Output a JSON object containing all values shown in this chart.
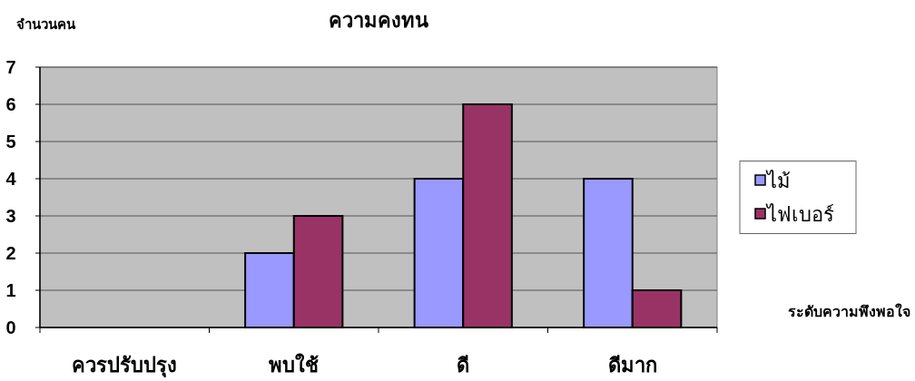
{
  "chart_data": {
    "type": "bar",
    "title": "ความคงทน",
    "xlabel": "ระดับความพึงพอใจ",
    "ylabel": "จำนวนคน",
    "categories": [
      "ควรปรับปรุง",
      "พบใช้",
      "ดี",
      "ดีมาก"
    ],
    "series": [
      {
        "name": "ไม้",
        "color": "#9999ff",
        "values": [
          0,
          2,
          4,
          4
        ]
      },
      {
        "name": "ไฟเบอร์",
        "color": "#993366",
        "values": [
          0,
          3,
          6,
          1
        ]
      }
    ],
    "ylim": [
      0,
      7
    ],
    "yticks": [
      0,
      1,
      2,
      3,
      4,
      5,
      6,
      7
    ],
    "grid": "y",
    "legend": "right"
  }
}
